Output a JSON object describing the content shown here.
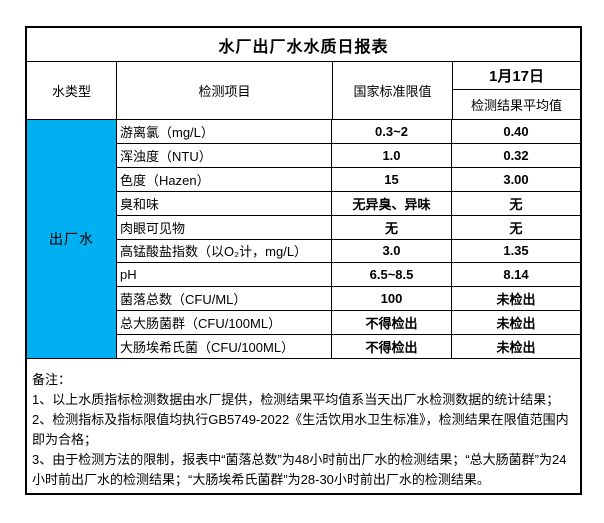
{
  "report": {
    "title": "水厂出厂水水质日报表",
    "header": {
      "water_type": "水类型",
      "test_item": "检测项目",
      "national_standard": "国家标准限值",
      "date": "1月17日",
      "avg_result": "检测结果平均值"
    },
    "water_type_value": "出厂水",
    "rows": [
      {
        "item": "游离氯（mg/L）",
        "standard": "0.3~2",
        "result": "0.40"
      },
      {
        "item": "浑浊度（NTU）",
        "standard": "1.0",
        "result": "0.32"
      },
      {
        "item": "色度（Hazen）",
        "standard": "15",
        "result": "3.00"
      },
      {
        "item": "臭和味",
        "standard": "无异臭、异味",
        "result": "无"
      },
      {
        "item": "肉眼可见物",
        "standard": "无",
        "result": "无"
      },
      {
        "item": "高锰酸盐指数（以O₂计，mg/L）",
        "standard": "3.0",
        "result": "1.35"
      },
      {
        "item": "pH",
        "standard": "6.5~8.5",
        "result": "8.14"
      },
      {
        "item": "菌落总数（CFU/ML）",
        "standard": "100",
        "result": "未检出"
      },
      {
        "item": "总大肠菌群（CFU/100ML）",
        "standard": "不得检出",
        "result": "未检出"
      },
      {
        "item": "大肠埃希氏菌（CFU/100ML）",
        "standard": "不得检出",
        "result": "未检出"
      }
    ],
    "notes": {
      "label": "备注：",
      "items": [
        "1、以上水质指标检测数据由水厂提供，检测结果平均值系当天出厂水检测数据的统计结果；",
        "2、检测指标及指标限值均执行GB5749-2022《生活饮用水卫生标准》，检测结果在限值范围内即为合格；",
        "3、由于检测方法的限制，报表中“菌落总数”为48小时前出厂水的检测结果；“总大肠菌群”为24小时前出厂水的检测结果；“大肠埃希氏菌群”为28-30小时前出厂水的检测结果。"
      ]
    },
    "colors": {
      "water_type_bg": "#00B0F0",
      "border": "#000000"
    }
  }
}
